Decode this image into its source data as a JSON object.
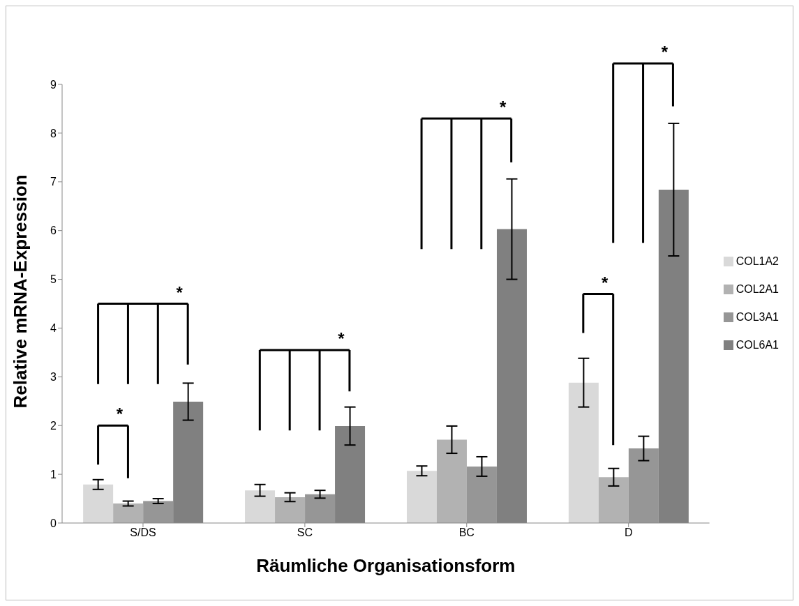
{
  "chart_data": {
    "type": "bar",
    "xlabel": "Räumliche Organisationsform",
    "ylabel": "Relative mRNA-Expression",
    "categories": [
      "S/DS",
      "SC",
      "BC",
      "D"
    ],
    "series": [
      {
        "name": "COL1A2",
        "color": "#d9d9d9",
        "values": [
          0.79,
          0.67,
          1.07,
          2.88
        ],
        "errors": [
          0.1,
          0.12,
          0.1,
          0.5
        ]
      },
      {
        "name": "COL2A1",
        "color": "#b2b2b2",
        "values": [
          0.4,
          0.53,
          1.71,
          0.94
        ],
        "errors": [
          0.05,
          0.09,
          0.28,
          0.18
        ]
      },
      {
        "name": "COL3A1",
        "color": "#969696",
        "values": [
          0.45,
          0.59,
          1.16,
          1.53
        ],
        "errors": [
          0.05,
          0.08,
          0.2,
          0.25
        ]
      },
      {
        "name": "COL6A1",
        "color": "#808080",
        "values": [
          2.49,
          1.99,
          6.03,
          6.84
        ],
        "errors": [
          0.38,
          0.39,
          1.03,
          1.36
        ]
      }
    ],
    "ylim": [
      0,
      9
    ],
    "yticks": [
      0,
      1,
      2,
      3,
      4,
      5,
      6,
      7,
      8,
      9
    ],
    "grid": false,
    "legend": "right",
    "annotations": [
      "*",
      "*",
      "*",
      "*",
      "*",
      "*"
    ]
  }
}
